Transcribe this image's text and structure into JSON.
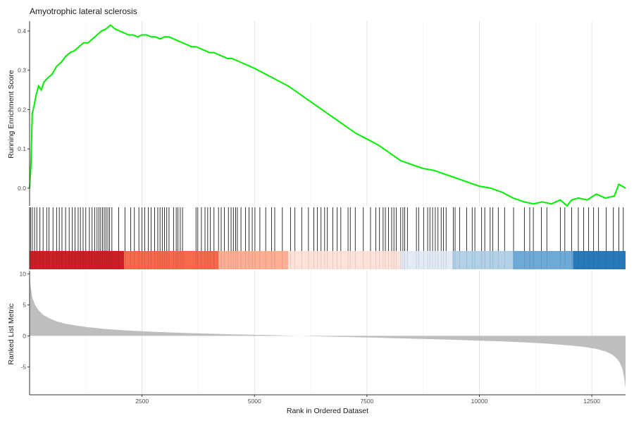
{
  "chart_data": {
    "type": "line",
    "title": "Amyotrophic lateral sclerosis",
    "xlabel": "Rank in Ordered Dataset",
    "xlim": [
      0,
      13250
    ],
    "x_ticks": [
      2500,
      5000,
      7500,
      10000,
      12500
    ],
    "x_tick_labels": [
      "2500",
      "5000",
      "7500",
      "10000",
      "12500"
    ],
    "grid": true,
    "panels": {
      "enrichment": {
        "ylabel": "Running Enrichment Score",
        "ylim": [
          -0.045,
          0.425
        ],
        "y_ticks": [
          0.0,
          0.1,
          0.2,
          0.3,
          0.4
        ],
        "y_tick_labels": [
          "0.0",
          "0.1",
          "0.2",
          "0.3",
          "0.4"
        ],
        "line_color": "#00ee00",
        "x": [
          0,
          30,
          60,
          100,
          150,
          200,
          260,
          320,
          400,
          500,
          600,
          700,
          800,
          900,
          1000,
          1100,
          1200,
          1300,
          1400,
          1500,
          1600,
          1700,
          1800,
          1900,
          2000,
          2100,
          2200,
          2300,
          2400,
          2500,
          2600,
          2700,
          2800,
          2900,
          3000,
          3100,
          3200,
          3300,
          3400,
          3500,
          3600,
          3700,
          3800,
          3900,
          4000,
          4100,
          4200,
          4300,
          4400,
          4500,
          4600,
          4700,
          4800,
          4900,
          5000,
          5250,
          5500,
          5750,
          6000,
          6250,
          6500,
          6750,
          7000,
          7250,
          7500,
          7750,
          8000,
          8250,
          8500,
          8750,
          9000,
          9250,
          9500,
          9750,
          10000,
          10250,
          10500,
          10750,
          11000,
          11200,
          11400,
          11600,
          11800,
          11950,
          12050,
          12200,
          12400,
          12600,
          12800,
          13000,
          13100,
          13250
        ],
        "y": [
          0.0,
          0.06,
          0.19,
          0.21,
          0.24,
          0.26,
          0.25,
          0.27,
          0.28,
          0.29,
          0.31,
          0.32,
          0.335,
          0.345,
          0.35,
          0.36,
          0.37,
          0.37,
          0.38,
          0.39,
          0.4,
          0.405,
          0.415,
          0.405,
          0.4,
          0.395,
          0.39,
          0.39,
          0.385,
          0.39,
          0.39,
          0.385,
          0.385,
          0.38,
          0.385,
          0.385,
          0.38,
          0.375,
          0.37,
          0.365,
          0.36,
          0.36,
          0.355,
          0.35,
          0.345,
          0.345,
          0.34,
          0.335,
          0.33,
          0.33,
          0.325,
          0.32,
          0.315,
          0.31,
          0.305,
          0.29,
          0.275,
          0.26,
          0.24,
          0.22,
          0.2,
          0.18,
          0.16,
          0.14,
          0.125,
          0.11,
          0.09,
          0.07,
          0.06,
          0.05,
          0.045,
          0.035,
          0.025,
          0.015,
          0.005,
          0.0,
          -0.01,
          -0.025,
          -0.035,
          -0.04,
          -0.035,
          -0.04,
          -0.03,
          -0.045,
          -0.03,
          -0.025,
          -0.03,
          -0.015,
          -0.025,
          -0.02,
          0.01,
          0.0
        ]
      },
      "hits": {
        "positions": [
          20,
          60,
          110,
          160,
          230,
          300,
          380,
          430,
          520,
          600,
          660,
          720,
          800,
          880,
          950,
          1010,
          1080,
          1130,
          1190,
          1250,
          1330,
          1390,
          1450,
          1500,
          1540,
          1580,
          1620,
          1660,
          1700,
          1740,
          1780,
          1830,
          1980,
          2120,
          2250,
          2330,
          2430,
          2500,
          2560,
          2640,
          2700,
          2780,
          2850,
          2900,
          2950,
          3000,
          3050,
          3100,
          3200,
          3260,
          3300,
          3350,
          3400,
          3700,
          3740,
          3820,
          3900,
          3960,
          4020,
          4100,
          4200,
          4260,
          4330,
          4420,
          4480,
          4530,
          4580,
          4620,
          4700,
          4800,
          4880,
          4950,
          5010,
          5120,
          5250,
          5380,
          5450,
          5620,
          5800,
          5900,
          6050,
          6200,
          6320,
          6400,
          6480,
          6560,
          6620,
          6740,
          6840,
          6920,
          7080,
          7130,
          7240,
          7420,
          7580,
          7700,
          7780,
          7860,
          7910,
          7980,
          8050,
          8100,
          8150,
          8250,
          8300,
          8340,
          8400,
          8600,
          8650,
          8760,
          8850,
          8900,
          8960,
          9020,
          9080,
          9150,
          9200,
          9260,
          9420,
          9460,
          9560,
          9720,
          9840,
          9900,
          10050,
          10120,
          10240,
          10300,
          10420,
          10560,
          10760,
          11000,
          11120,
          11200,
          11380,
          11500,
          11800,
          11900,
          12050,
          12200,
          12320,
          12430,
          12540,
          12650,
          12820,
          12980,
          13100,
          13200
        ]
      },
      "heat_strip": {
        "segments": [
          {
            "start": 0,
            "end": 2100,
            "color": "#cb2027"
          },
          {
            "start": 2100,
            "end": 4200,
            "color": "#f5694c"
          },
          {
            "start": 4200,
            "end": 5750,
            "color": "#fcaf94"
          },
          {
            "start": 5750,
            "end": 8250,
            "color": "#fde3d8"
          },
          {
            "start": 8250,
            "end": 9400,
            "color": "#e3ebf6"
          },
          {
            "start": 9400,
            "end": 10750,
            "color": "#b3d1e6"
          },
          {
            "start": 10750,
            "end": 12080,
            "color": "#6eaad5"
          },
          {
            "start": 12080,
            "end": 13250,
            "color": "#2979b9"
          }
        ]
      },
      "ranked": {
        "ylabel": "Ranked List Metric",
        "ylim": [
          -9.5,
          10.5
        ],
        "y_ticks": [
          -5,
          0,
          5,
          10
        ],
        "y_tick_labels": [
          "-5",
          "0",
          "5",
          "10"
        ],
        "fill_color": "#bebebe",
        "x": [
          0,
          20,
          60,
          120,
          200,
          300,
          450,
          600,
          800,
          1000,
          1300,
          1700,
          2200,
          2800,
          3500,
          4500,
          5500,
          6000,
          6500,
          7500,
          8500,
          9500,
          10500,
          11000,
          11500,
          12000,
          12300,
          12600,
          12800,
          12950,
          13050,
          13120,
          13180,
          13220,
          13250
        ],
        "y": [
          10,
          8.2,
          6.2,
          5.0,
          4.1,
          3.4,
          2.8,
          2.35,
          1.95,
          1.7,
          1.4,
          1.1,
          0.85,
          0.65,
          0.45,
          0.25,
          0.1,
          0.0,
          -0.1,
          -0.25,
          -0.45,
          -0.65,
          -0.9,
          -1.05,
          -1.25,
          -1.55,
          -1.75,
          -2.1,
          -2.5,
          -3.0,
          -3.6,
          -4.3,
          -5.3,
          -6.8,
          -8.4
        ]
      }
    }
  }
}
